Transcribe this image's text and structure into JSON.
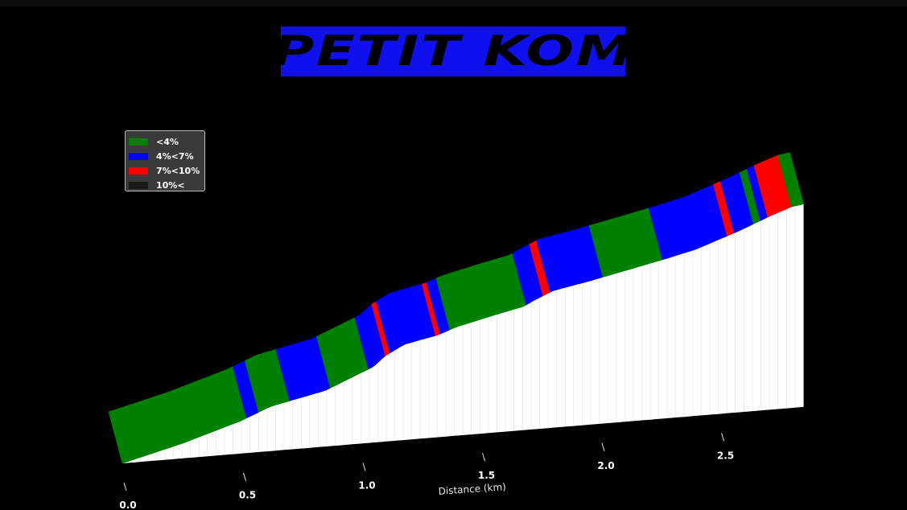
{
  "title": "PETIT KOM",
  "legend": [
    {
      "label": "<4%",
      "color": "#008000"
    },
    {
      "label": "4%<7%",
      "color": "#0000ff"
    },
    {
      "label": "7%<10%",
      "color": "#ff0000"
    },
    {
      "label": "10%<",
      "color": "#1a1a1a"
    }
  ],
  "chart_data": {
    "type": "area",
    "title": "PETIT KOM",
    "xlabel": "Distance (km)",
    "ylabel": "",
    "xlim": [
      0,
      2.85
    ],
    "x_ticks": [
      0.0,
      0.5,
      1.0,
      1.5,
      2.0,
      2.5
    ],
    "x_tick_labels": [
      "0.0",
      "0.5",
      "1.0",
      "1.5",
      "2.0",
      "2.5"
    ],
    "grid": false,
    "legend_position": "top-left",
    "elevation_profile": {
      "x": [
        0.0,
        0.25,
        0.5,
        0.55,
        0.62,
        0.75,
        0.85,
        0.95,
        1.05,
        1.1,
        1.18,
        1.32,
        1.4,
        1.55,
        1.68,
        1.72,
        1.8,
        1.95,
        2.05,
        2.15,
        2.28,
        2.4,
        2.5,
        2.58,
        2.65,
        2.72,
        2.76,
        2.8,
        2.85
      ],
      "y": [
        0.0,
        0.09,
        0.2,
        0.23,
        0.27,
        0.31,
        0.34,
        0.4,
        0.46,
        0.52,
        0.58,
        0.62,
        0.66,
        0.71,
        0.75,
        0.78,
        0.83,
        0.87,
        0.9,
        0.93,
        0.97,
        1.01,
        1.06,
        1.1,
        1.14,
        1.18,
        1.2,
        1.22,
        1.23
      ]
    },
    "gradient_segments": [
      {
        "from": 0.0,
        "to": 0.52,
        "class": "<4%"
      },
      {
        "from": 0.52,
        "to": 0.57,
        "class": "4%<7%"
      },
      {
        "from": 0.57,
        "to": 0.7,
        "class": "<4%"
      },
      {
        "from": 0.7,
        "to": 0.87,
        "class": "4%<7%"
      },
      {
        "from": 0.87,
        "to": 1.03,
        "class": "<4%"
      },
      {
        "from": 1.03,
        "to": 1.1,
        "class": "4%<7%"
      },
      {
        "from": 1.1,
        "to": 1.12,
        "class": "7%<10%"
      },
      {
        "from": 1.12,
        "to": 1.31,
        "class": "4%<7%"
      },
      {
        "from": 1.31,
        "to": 1.33,
        "class": "7%<10%"
      },
      {
        "from": 1.33,
        "to": 1.37,
        "class": "4%<7%"
      },
      {
        "from": 1.37,
        "to": 1.69,
        "class": "<4%"
      },
      {
        "from": 1.69,
        "to": 1.76,
        "class": "4%<7%"
      },
      {
        "from": 1.76,
        "to": 1.79,
        "class": "7%<10%"
      },
      {
        "from": 1.79,
        "to": 2.01,
        "class": "4%<7%"
      },
      {
        "from": 2.01,
        "to": 2.26,
        "class": "<4%"
      },
      {
        "from": 2.26,
        "to": 2.53,
        "class": "4%<7%"
      },
      {
        "from": 2.53,
        "to": 2.56,
        "class": "7%<10%"
      },
      {
        "from": 2.56,
        "to": 2.64,
        "class": "4%<7%"
      },
      {
        "from": 2.64,
        "to": 2.67,
        "class": "<4%"
      },
      {
        "from": 2.67,
        "to": 2.7,
        "class": "4%<7%"
      },
      {
        "from": 2.7,
        "to": 2.8,
        "class": "7%<10%"
      },
      {
        "from": 2.8,
        "to": 2.85,
        "class": "<4%"
      }
    ]
  }
}
